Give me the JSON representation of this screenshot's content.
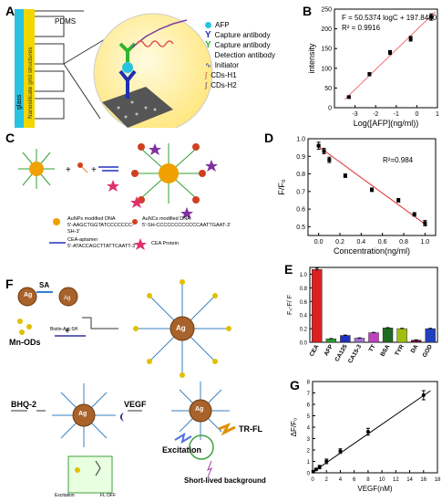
{
  "panels": {
    "A": {
      "label": "A",
      "pdms": "PDMS",
      "glass": "glass",
      "nanostructures": "Nanosilicate grid structures",
      "legend": [
        {
          "key": "afp",
          "text": "AFP"
        },
        {
          "key": "capture",
          "text": "Capture antibody"
        },
        {
          "key": "detection_line1",
          "text": "Capture antibody"
        },
        {
          "key": "detection_line2",
          "text": "Detection antibody"
        },
        {
          "key": "initiator",
          "text": "Initiator"
        },
        {
          "key": "h1",
          "text": "CDs-H1"
        },
        {
          "key": "h2",
          "text": "CDs-H2"
        }
      ],
      "colors": {
        "afp": "#27c4e0",
        "capture": "#1f2fb5",
        "detection": "#2fb52f",
        "sphere": "#fff3a8"
      }
    },
    "B": {
      "label": "B"
    },
    "C": {
      "label": "C",
      "legend": [
        {
          "title": "AuNPs modified DNA",
          "seq": "5'-AAGCTGGTATCCCCCCC-SH-3'"
        },
        {
          "title": "AuNCs modified DNA",
          "seq": "5'-SH-CCCCCCCCCCCCAATTGAAT-3'"
        },
        {
          "title": "CEA-aptamer",
          "seq": "5'-ATACCAGCTTATTCAATT-3'"
        },
        {
          "title": "CEA Protein",
          "seq": ""
        }
      ]
    },
    "D": {
      "label": "D"
    },
    "E": {
      "label": "E"
    },
    "F": {
      "label": "F",
      "ag": "Ag",
      "sa": "SA",
      "mn_ods": "Mn-ODs",
      "biotin": "Biotin-Apt-SH",
      "bhq": "BHQ-2",
      "vegf": "VEGF",
      "trfl": "TR-FL",
      "excitation": "Excitation",
      "excitation_small": "Excitation",
      "short_lived": "Short-lived background",
      "fl_off": "FL OFF"
    },
    "G": {
      "label": "G"
    }
  },
  "chart_data": [
    {
      "id": "B",
      "type": "scatter",
      "title": "",
      "xlabel": "Log([AFP](ng/ml))",
      "ylabel": "intensity",
      "xlim": [
        -4,
        1
      ],
      "ylim": [
        0,
        250
      ],
      "xticks": [
        -3,
        -2,
        -1,
        0,
        1
      ],
      "yticks": [
        0,
        50,
        100,
        150,
        200,
        250
      ],
      "points": [
        {
          "x": -3.3,
          "y": 27,
          "err": 3
        },
        {
          "x": -2.3,
          "y": 85,
          "err": 4
        },
        {
          "x": -1.3,
          "y": 140,
          "err": 5
        },
        {
          "x": -0.3,
          "y": 175,
          "err": 6
        },
        {
          "x": 0.7,
          "y": 230,
          "err": 8
        }
      ],
      "fit": {
        "slope": 50.5374,
        "intercept": 197.848
      },
      "annotation_eq": "F = 50.5374 logC + 197.8480",
      "annotation_r2": "R² = 0.9916",
      "colors": {
        "fit": "#f07070",
        "points": "#000000"
      }
    },
    {
      "id": "D",
      "type": "scatter",
      "title": "",
      "xlabel": "Concentration(ng/ml)",
      "ylabel": "F/F₀",
      "xlim": [
        -0.1,
        1.1
      ],
      "ylim": [
        0.45,
        1.0
      ],
      "xticks": [
        0.0,
        0.2,
        0.4,
        0.6,
        0.8,
        1.0
      ],
      "yticks": [
        0.5,
        0.6,
        0.7,
        0.8,
        0.9,
        1.0
      ],
      "points": [
        {
          "x": 0.0,
          "y": 0.96,
          "err": 0.02
        },
        {
          "x": 0.05,
          "y": 0.93,
          "err": 0.015
        },
        {
          "x": 0.1,
          "y": 0.88,
          "err": 0.015
        },
        {
          "x": 0.25,
          "y": 0.79,
          "err": 0.01
        },
        {
          "x": 0.5,
          "y": 0.71,
          "err": 0.01
        },
        {
          "x": 0.75,
          "y": 0.65,
          "err": 0.01
        },
        {
          "x": 0.9,
          "y": 0.57,
          "err": 0.01
        },
        {
          "x": 1.0,
          "y": 0.52,
          "err": 0.015
        }
      ],
      "fit": {
        "slope": -0.44,
        "intercept": 0.955
      },
      "annotation_r2": "R²=0.984",
      "colors": {
        "fit": "#e03030",
        "points": "#000000"
      }
    },
    {
      "id": "E",
      "type": "bar",
      "title": "",
      "xlabel": "",
      "ylabel": "F₀-F/ F",
      "ylim": [
        0,
        1.1
      ],
      "yticks": [
        0.0,
        0.2,
        0.4,
        0.6,
        0.8,
        1.0
      ],
      "categories": [
        "CEA",
        "AFP",
        "CA125",
        "CA15-3",
        "TT",
        "BSA",
        "TYR",
        "DA",
        "GOD"
      ],
      "values": [
        1.07,
        0.05,
        0.1,
        0.06,
        0.14,
        0.21,
        0.2,
        0.03,
        0.2
      ],
      "errors": [
        0.02,
        0.005,
        0.005,
        0.005,
        0.005,
        0.005,
        0.005,
        0.005,
        0.005
      ],
      "colors": [
        "#e02020",
        "#2ea02e",
        "#2030c0",
        "#a070d0",
        "#c040c0",
        "#206a20",
        "#a0c010",
        "#6a1040",
        "#2040c0"
      ]
    },
    {
      "id": "G",
      "type": "scatter",
      "title": "",
      "xlabel": "VEGF(nM)",
      "ylabel": "ΔF/F₀",
      "xlim": [
        0,
        18
      ],
      "ylim": [
        0,
        8
      ],
      "xticks": [
        0,
        2,
        4,
        6,
        8,
        10,
        12,
        14,
        16,
        18
      ],
      "yticks": [
        0,
        1,
        2,
        3,
        4,
        5,
        6,
        7,
        8
      ],
      "points": [
        {
          "x": 0.1,
          "y": 0.1,
          "err": 0.1
        },
        {
          "x": 0.5,
          "y": 0.3,
          "err": 0.1
        },
        {
          "x": 1,
          "y": 0.5,
          "err": 0.15
        },
        {
          "x": 2,
          "y": 1.0,
          "err": 0.2
        },
        {
          "x": 4,
          "y": 1.9,
          "err": 0.2
        },
        {
          "x": 8,
          "y": 3.6,
          "err": 0.3
        },
        {
          "x": 16,
          "y": 6.8,
          "err": 0.4
        }
      ],
      "fit": {
        "slope": 0.42,
        "intercept": 0.05
      },
      "colors": {
        "fit": "#000000",
        "points": "#000000"
      }
    }
  ]
}
